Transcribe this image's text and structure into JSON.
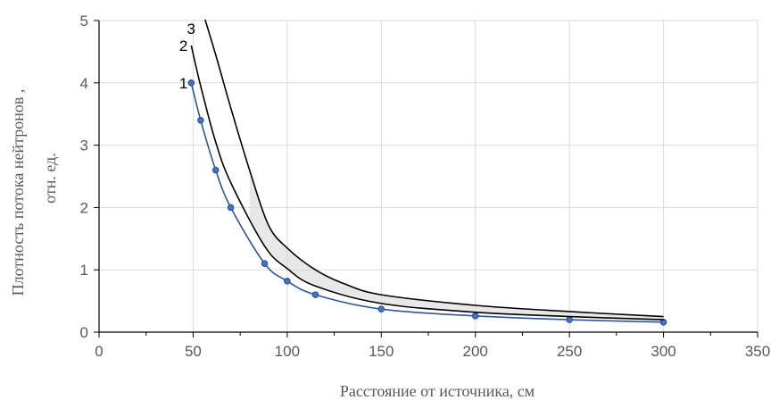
{
  "chart_data": {
    "type": "line",
    "title": "",
    "xlabel": "Расстояние от источника, см",
    "ylabel_lines": [
      "Плотность потока нейтронов ,",
      "отн. ед."
    ],
    "xlim": [
      0,
      350
    ],
    "ylim": [
      0,
      5
    ],
    "x_ticks": [
      0,
      50,
      100,
      150,
      200,
      250,
      300,
      350
    ],
    "y_ticks": [
      0,
      1,
      2,
      3,
      4,
      5
    ],
    "grid": true,
    "colors": {
      "grid": "#d9d9d9",
      "axis": "#000000",
      "series_1": "#2f5597",
      "series_2": "#000000",
      "series_3": "#000000",
      "band_fill": "#d6d6d6"
    },
    "series": [
      {
        "name": "1",
        "markers": true,
        "x": [
          49,
          54,
          62,
          70,
          88,
          100,
          115,
          150,
          200,
          250,
          300
        ],
        "y": [
          4.0,
          3.4,
          2.6,
          2.0,
          1.1,
          0.82,
          0.6,
          0.37,
          0.26,
          0.2,
          0.16
        ]
      },
      {
        "name": "2",
        "markers": false,
        "x": [
          49,
          54,
          62,
          70,
          88,
          100,
          115,
          150,
          200,
          250,
          300
        ],
        "y": [
          4.6,
          3.95,
          3.05,
          2.4,
          1.38,
          1.02,
          0.74,
          0.46,
          0.32,
          0.25,
          0.2
        ]
      },
      {
        "name": "3",
        "markers": false,
        "x": [
          55,
          62,
          70,
          80,
          90,
          100,
          115,
          130,
          150,
          200,
          250,
          300
        ],
        "y": [
          5.15,
          4.45,
          3.6,
          2.6,
          1.72,
          1.35,
          1.0,
          0.78,
          0.6,
          0.43,
          0.33,
          0.25
        ]
      }
    ]
  }
}
